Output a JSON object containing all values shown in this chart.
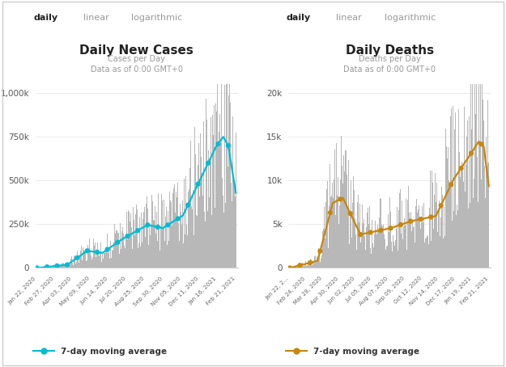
{
  "cases_title": "Daily New Cases",
  "cases_subtitle": "Cases per Day\nData as of 0:00 GMT+0",
  "deaths_title": "Daily Deaths",
  "deaths_subtitle": "Deaths per Day\nData as of 0:00 GMT+0",
  "tab_labels": [
    "daily",
    "linear",
    "logarithmic"
  ],
  "tab_underline_color": "#00bcd4",
  "bar_color": "#b8b8b8",
  "cases_line_color": "#00bcd4",
  "deaths_line_color": "#c8860a",
  "legend_label": "7-day moving average",
  "bg_color": "#ffffff",
  "cases_yticks": [
    0,
    250000,
    500000,
    750000,
    1000000
  ],
  "cases_ytick_labels": [
    "0",
    "250k",
    "500k",
    "750k",
    "1,000k"
  ],
  "cases_ylim": [
    0,
    1050000
  ],
  "deaths_yticks": [
    0,
    5000,
    10000,
    15000,
    20000
  ],
  "deaths_ytick_labels": [
    "0",
    "5k",
    "10k",
    "15k",
    "20k"
  ],
  "deaths_ylim": [
    0,
    21000
  ],
  "cases_xtick_labels": [
    "Jan 22, 2020",
    "Feb 27, 2020",
    "Apr 03, 2020",
    "May 09, 2020",
    "Jun 14, 2020",
    "Jul 20, 2020",
    "Aug 25, 2020",
    "Sep 30, 2020",
    "Nov 05, 2020",
    "Dec 11, 2020",
    "Jan 16, 2021",
    "Feb 21, 2021"
  ],
  "deaths_xtick_labels": [
    "Jan 22, 2...",
    "Feb 24, 2020",
    "Mar 28, 2020",
    "Apr 30, 2020",
    "Jun 02, 2020",
    "Jul 05, 2020",
    "Aug 07, 2020",
    "Sep 09, 2020",
    "Oct 12, 2020",
    "Nov 14, 2020",
    "Dec 17, 2020",
    "Jan 19, 2021",
    "Feb 21, 2021"
  ]
}
